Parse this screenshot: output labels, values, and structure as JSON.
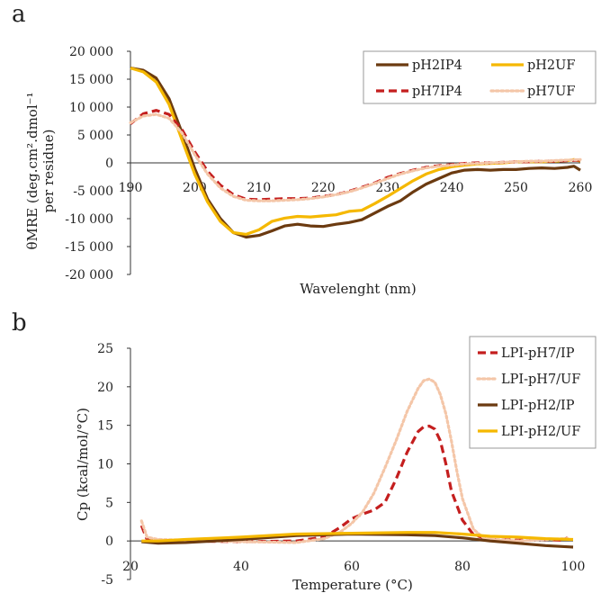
{
  "chart_data": [
    {
      "panel": "a",
      "type": "line",
      "title": "",
      "xlabel": "Wavelenght (nm)",
      "ylabel_line1": "θMRE (deg.cm².dmol⁻¹",
      "ylabel_line2": "per residue)",
      "xlim": [
        190,
        260
      ],
      "ylim": [
        -20000,
        20000
      ],
      "xticks": [
        190,
        200,
        210,
        220,
        230,
        240,
        250,
        260
      ],
      "xtick_labels": [
        "190",
        "200",
        "210",
        "220",
        "230",
        "240",
        "250",
        "260"
      ],
      "yticks": [
        20000,
        15000,
        10000,
        5000,
        0,
        -5000,
        -10000,
        -15000,
        -20000
      ],
      "ytick_labels": [
        "20 000",
        "15 000",
        "10 000",
        "5 000",
        "0",
        "-5 000",
        "-10 000",
        "-15 000",
        "-20 000"
      ],
      "legend_position": "top-right",
      "series": [
        {
          "name": "pH2IP4",
          "color": "#6b3a10",
          "style": "solid",
          "points": [
            [
              190,
              17000
            ],
            [
              192,
              16600
            ],
            [
              194,
              15200
            ],
            [
              196,
              11500
            ],
            [
              198,
              5500
            ],
            [
              200,
              -1000
            ],
            [
              202,
              -6500
            ],
            [
              204,
              -10000
            ],
            [
              206,
              -12500
            ],
            [
              208,
              -13300
            ],
            [
              210,
              -13000
            ],
            [
              212,
              -12200
            ],
            [
              214,
              -11300
            ],
            [
              216,
              -11000
            ],
            [
              218,
              -11300
            ],
            [
              220,
              -11400
            ],
            [
              222,
              -11000
            ],
            [
              224,
              -10700
            ],
            [
              226,
              -10200
            ],
            [
              228,
              -9000
            ],
            [
              230,
              -7800
            ],
            [
              232,
              -6800
            ],
            [
              234,
              -5200
            ],
            [
              236,
              -3800
            ],
            [
              238,
              -2800
            ],
            [
              240,
              -1800
            ],
            [
              242,
              -1300
            ],
            [
              244,
              -1200
            ],
            [
              246,
              -1300
            ],
            [
              248,
              -1200
            ],
            [
              250,
              -1200
            ],
            [
              252,
              -1000
            ],
            [
              254,
              -900
            ],
            [
              256,
              -1000
            ],
            [
              258,
              -800
            ],
            [
              259,
              -600
            ],
            [
              260,
              -1300
            ]
          ]
        },
        {
          "name": "pH2UF",
          "color": "#f5b800",
          "style": "solid",
          "points": [
            [
              190,
              17000
            ],
            [
              192,
              16300
            ],
            [
              194,
              14500
            ],
            [
              196,
              10500
            ],
            [
              198,
              4200
            ],
            [
              200,
              -2000
            ],
            [
              202,
              -7000
            ],
            [
              204,
              -10500
            ],
            [
              206,
              -12500
            ],
            [
              208,
              -12800
            ],
            [
              210,
              -12000
            ],
            [
              212,
              -10500
            ],
            [
              214,
              -9900
            ],
            [
              216,
              -9600
            ],
            [
              218,
              -9700
            ],
            [
              220,
              -9500
            ],
            [
              222,
              -9300
            ],
            [
              224,
              -8700
            ],
            [
              226,
              -8500
            ],
            [
              228,
              -7300
            ],
            [
              230,
              -6000
            ],
            [
              232,
              -4600
            ],
            [
              234,
              -3200
            ],
            [
              236,
              -2000
            ],
            [
              238,
              -1200
            ],
            [
              240,
              -700
            ],
            [
              242,
              -400
            ],
            [
              244,
              -200
            ],
            [
              246,
              -100
            ],
            [
              248,
              0
            ],
            [
              250,
              200
            ],
            [
              252,
              200
            ],
            [
              254,
              200
            ],
            [
              256,
              300
            ],
            [
              258,
              400
            ],
            [
              259,
              600
            ],
            [
              260,
              300
            ]
          ]
        },
        {
          "name": "pH7IP4",
          "color": "#c41e1e",
          "style": "dashed",
          "points": [
            [
              190,
              7000
            ],
            [
              192,
              8800
            ],
            [
              194,
              9400
            ],
            [
              196,
              8700
            ],
            [
              198,
              6000
            ],
            [
              200,
              2000
            ],
            [
              202,
              -1500
            ],
            [
              204,
              -4000
            ],
            [
              206,
              -5700
            ],
            [
              208,
              -6500
            ],
            [
              210,
              -6600
            ],
            [
              212,
              -6500
            ],
            [
              214,
              -6400
            ],
            [
              216,
              -6400
            ],
            [
              218,
              -6300
            ],
            [
              220,
              -6000
            ],
            [
              222,
              -5700
            ],
            [
              224,
              -5100
            ],
            [
              226,
              -4400
            ],
            [
              228,
              -3600
            ],
            [
              230,
              -2600
            ],
            [
              232,
              -1900
            ],
            [
              234,
              -1300
            ],
            [
              236,
              -800
            ],
            [
              238,
              -500
            ],
            [
              240,
              -300
            ],
            [
              242,
              -100
            ],
            [
              244,
              0
            ],
            [
              246,
              0
            ],
            [
              248,
              100
            ],
            [
              250,
              200
            ],
            [
              252,
              200
            ],
            [
              254,
              300
            ],
            [
              256,
              300
            ],
            [
              258,
              400
            ],
            [
              260,
              500
            ]
          ]
        },
        {
          "name": "pH7UF",
          "color": "#f4c6a8",
          "style": "dotted",
          "points": [
            [
              190,
              7200
            ],
            [
              192,
              8400
            ],
            [
              194,
              8700
            ],
            [
              196,
              8000
            ],
            [
              198,
              5400
            ],
            [
              200,
              1500
            ],
            [
              202,
              -2000
            ],
            [
              204,
              -4500
            ],
            [
              206,
              -6000
            ],
            [
              208,
              -6700
            ],
            [
              210,
              -6800
            ],
            [
              212,
              -6800
            ],
            [
              214,
              -6700
            ],
            [
              216,
              -6600
            ],
            [
              218,
              -6400
            ],
            [
              220,
              -6100
            ],
            [
              222,
              -5700
            ],
            [
              224,
              -5200
            ],
            [
              226,
              -4500
            ],
            [
              228,
              -3700
            ],
            [
              230,
              -2800
            ],
            [
              232,
              -2000
            ],
            [
              234,
              -1400
            ],
            [
              236,
              -900
            ],
            [
              238,
              -600
            ],
            [
              240,
              -400
            ],
            [
              242,
              -200
            ],
            [
              244,
              -100
            ],
            [
              246,
              0
            ],
            [
              248,
              100
            ],
            [
              250,
              200
            ],
            [
              252,
              300
            ],
            [
              254,
              300
            ],
            [
              256,
              400
            ],
            [
              258,
              500
            ],
            [
              260,
              600
            ]
          ]
        }
      ]
    },
    {
      "panel": "b",
      "type": "line",
      "title": "",
      "xlabel": "Temperature (°C)",
      "ylabel": "Cp (kcal/mol/°C)",
      "xlim": [
        20,
        100
      ],
      "ylim": [
        -5,
        25
      ],
      "xticks": [
        20,
        40,
        60,
        80,
        100
      ],
      "xtick_labels": [
        "20",
        "40",
        "60",
        "80",
        "100"
      ],
      "yticks": [
        25,
        20,
        15,
        10,
        5,
        0,
        -5
      ],
      "ytick_labels": [
        "25",
        "20",
        "15",
        "10",
        "5",
        "0",
        "-5"
      ],
      "legend_position": "top-right",
      "series": [
        {
          "name": "LPI-pH7/IP",
          "color": "#c41e1e",
          "style": "dashed",
          "points": [
            [
              22,
              2.0
            ],
            [
              23,
              0.2
            ],
            [
              25,
              0.0
            ],
            [
              30,
              0.0
            ],
            [
              40,
              -0.1
            ],
            [
              50,
              0.0
            ],
            [
              55,
              0.5
            ],
            [
              58,
              1.8
            ],
            [
              60,
              2.9
            ],
            [
              62,
              3.5
            ],
            [
              64,
              4.0
            ],
            [
              66,
              5.0
            ],
            [
              68,
              8.0
            ],
            [
              70,
              11.5
            ],
            [
              72,
              14.2
            ],
            [
              73,
              14.8
            ],
            [
              74,
              14.9
            ],
            [
              75,
              14.5
            ],
            [
              76,
              13.0
            ],
            [
              77,
              10.0
            ],
            [
              78,
              6.5
            ],
            [
              80,
              2.7
            ],
            [
              82,
              0.8
            ],
            [
              85,
              0.2
            ],
            [
              90,
              0.1
            ],
            [
              95,
              0.2
            ],
            [
              98,
              0.1
            ],
            [
              99,
              0.4
            ]
          ]
        },
        {
          "name": "LPI-pH7/UF",
          "color": "#f4c6a8",
          "style": "dotted",
          "points": [
            [
              22,
              2.6
            ],
            [
              23,
              0.5
            ],
            [
              25,
              0.2
            ],
            [
              30,
              0.1
            ],
            [
              40,
              -0.1
            ],
            [
              50,
              -0.2
            ],
            [
              55,
              0.3
            ],
            [
              58,
              1.2
            ],
            [
              60,
              2.3
            ],
            [
              62,
              3.8
            ],
            [
              64,
              6.2
            ],
            [
              66,
              9.5
            ],
            [
              68,
              13.0
            ],
            [
              70,
              16.8
            ],
            [
              72,
              19.8
            ],
            [
              73,
              20.8
            ],
            [
              74,
              21.0
            ],
            [
              75,
              20.6
            ],
            [
              76,
              19.0
            ],
            [
              77,
              16.5
            ],
            [
              78,
              13.0
            ],
            [
              79,
              9.0
            ],
            [
              80,
              5.5
            ],
            [
              82,
              1.5
            ],
            [
              84,
              0.3
            ],
            [
              90,
              0.0
            ],
            [
              95,
              0.2
            ],
            [
              99,
              0.3
            ]
          ]
        },
        {
          "name": "LPI-pH2/IP",
          "color": "#6b3a10",
          "style": "solid",
          "points": [
            [
              22,
              -0.1
            ],
            [
              25,
              -0.3
            ],
            [
              30,
              -0.2
            ],
            [
              40,
              0.2
            ],
            [
              50,
              0.7
            ],
            [
              60,
              0.9
            ],
            [
              70,
              0.8
            ],
            [
              75,
              0.7
            ],
            [
              80,
              0.4
            ],
            [
              85,
              0.0
            ],
            [
              90,
              -0.3
            ],
            [
              95,
              -0.6
            ],
            [
              100,
              -0.8
            ]
          ]
        },
        {
          "name": "LPI-pH2/UF",
          "color": "#f5b800",
          "style": "solid",
          "points": [
            [
              22,
              0.0
            ],
            [
              25,
              0.0
            ],
            [
              30,
              0.2
            ],
            [
              40,
              0.5
            ],
            [
              50,
              0.9
            ],
            [
              60,
              1.0
            ],
            [
              70,
              1.1
            ],
            [
              75,
              1.1
            ],
            [
              80,
              0.9
            ],
            [
              85,
              0.6
            ],
            [
              90,
              0.5
            ],
            [
              95,
              0.3
            ],
            [
              100,
              0.2
            ]
          ]
        }
      ]
    }
  ]
}
